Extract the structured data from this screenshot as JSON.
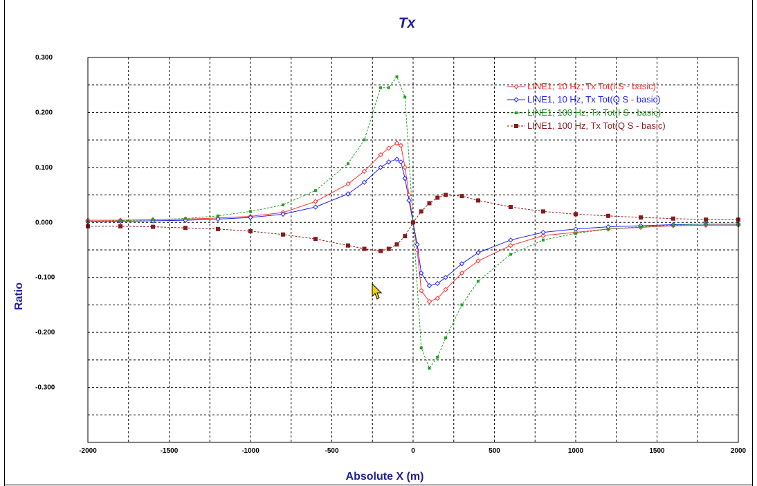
{
  "chart_data": {
    "type": "line",
    "title": "Tx",
    "xlabel": "Absolute X (m)",
    "ylabel": "Ratio",
    "xlim": [
      -2000,
      2000
    ],
    "ylim": [
      -0.4,
      0.3
    ],
    "x_ticks": [
      -2000,
      -1500,
      -1000,
      -500,
      0,
      500,
      1000,
      1500,
      2000
    ],
    "x_tick_labels": [
      "-2000",
      "-1500",
      "-1000",
      "-500",
      "0",
      "500",
      "1000",
      "1500",
      "2000"
    ],
    "y_ticks": [
      0.3,
      0.2,
      0.1,
      0.0,
      -0.1,
      -0.2,
      -0.3
    ],
    "y_tick_labels": [
      "0.300",
      "0.200",
      "0.100",
      "0.000",
      "-0.100",
      "-0.200",
      "-0.300"
    ],
    "grid": true,
    "legend_position": "top-right",
    "series": [
      {
        "name": "LINE1, 10 Hz, Tx Tot(I S - basic)",
        "color": "#ff3030",
        "marker": "diamond-open",
        "dashed": false,
        "points": [
          [
            -2000,
            0.004
          ],
          [
            -1800,
            0.004
          ],
          [
            -1600,
            0.005
          ],
          [
            -1400,
            0.006
          ],
          [
            -1200,
            0.008
          ],
          [
            -1000,
            0.011
          ],
          [
            -800,
            0.018
          ],
          [
            -600,
            0.038
          ],
          [
            -400,
            0.07
          ],
          [
            -300,
            0.093
          ],
          [
            -200,
            0.123
          ],
          [
            -150,
            0.135
          ],
          [
            -100,
            0.144
          ],
          [
            -75,
            0.14
          ],
          [
            -50,
            0.1
          ],
          [
            -25,
            0.05
          ],
          [
            0,
            0.0
          ],
          [
            25,
            -0.05
          ],
          [
            50,
            -0.124
          ],
          [
            100,
            -0.144
          ],
          [
            150,
            -0.138
          ],
          [
            200,
            -0.122
          ],
          [
            300,
            -0.092
          ],
          [
            400,
            -0.07
          ],
          [
            600,
            -0.042
          ],
          [
            800,
            -0.024
          ],
          [
            1000,
            -0.018
          ],
          [
            1200,
            -0.012
          ],
          [
            1400,
            -0.009
          ],
          [
            1600,
            -0.006
          ],
          [
            1800,
            -0.005
          ],
          [
            2000,
            -0.005
          ]
        ]
      },
      {
        "name": "LINE1, 10 Hz, Tx Tot(Q S - basic)",
        "color": "#2020ff",
        "marker": "diamond-open",
        "dashed": false,
        "points": [
          [
            -2000,
            0.001
          ],
          [
            -1800,
            0.002
          ],
          [
            -1600,
            0.003
          ],
          [
            -1400,
            0.004
          ],
          [
            -1200,
            0.006
          ],
          [
            -1000,
            0.009
          ],
          [
            -800,
            0.015
          ],
          [
            -600,
            0.028
          ],
          [
            -400,
            0.052
          ],
          [
            -300,
            0.073
          ],
          [
            -200,
            0.1
          ],
          [
            -150,
            0.11
          ],
          [
            -100,
            0.115
          ],
          [
            -75,
            0.11
          ],
          [
            -50,
            0.08
          ],
          [
            -25,
            0.04
          ],
          [
            0,
            0.0
          ],
          [
            25,
            -0.04
          ],
          [
            50,
            -0.092
          ],
          [
            100,
            -0.115
          ],
          [
            150,
            -0.111
          ],
          [
            200,
            -0.1
          ],
          [
            300,
            -0.075
          ],
          [
            400,
            -0.055
          ],
          [
            600,
            -0.032
          ],
          [
            800,
            -0.018
          ],
          [
            1000,
            -0.012
          ],
          [
            1200,
            -0.008
          ],
          [
            1400,
            -0.006
          ],
          [
            1600,
            -0.004
          ],
          [
            1800,
            -0.003
          ],
          [
            2000,
            -0.003
          ]
        ]
      },
      {
        "name": "LINE1, 100 Hz, Tx Tot(I S - basic)",
        "color": "#20a020",
        "marker": "square-small",
        "dashed": true,
        "points": [
          [
            -2000,
            0.002
          ],
          [
            -1800,
            0.003
          ],
          [
            -1600,
            0.005
          ],
          [
            -1400,
            0.007
          ],
          [
            -1200,
            0.012
          ],
          [
            -1000,
            0.02
          ],
          [
            -800,
            0.032
          ],
          [
            -600,
            0.058
          ],
          [
            -400,
            0.107
          ],
          [
            -300,
            0.15
          ],
          [
            -200,
            0.245
          ],
          [
            -150,
            0.245
          ],
          [
            -100,
            0.265
          ],
          [
            -50,
            0.228
          ],
          [
            0,
            0.0
          ],
          [
            50,
            -0.228
          ],
          [
            100,
            -0.265
          ],
          [
            150,
            -0.245
          ],
          [
            200,
            -0.21
          ],
          [
            300,
            -0.15
          ],
          [
            400,
            -0.107
          ],
          [
            600,
            -0.058
          ],
          [
            800,
            -0.032
          ],
          [
            1000,
            -0.02
          ],
          [
            1200,
            -0.012
          ],
          [
            1400,
            -0.008
          ],
          [
            1600,
            -0.005
          ],
          [
            1800,
            -0.003
          ],
          [
            2000,
            -0.003
          ]
        ]
      },
      {
        "name": "LINE1, 100 Hz, Tx Tot(Q S - basic)",
        "color": "#8b1a1a",
        "marker": "square",
        "dashed": true,
        "points": [
          [
            -2000,
            -0.007
          ],
          [
            -1800,
            -0.007
          ],
          [
            -1600,
            -0.008
          ],
          [
            -1400,
            -0.01
          ],
          [
            -1200,
            -0.012
          ],
          [
            -1000,
            -0.016
          ],
          [
            -800,
            -0.022
          ],
          [
            -600,
            -0.03
          ],
          [
            -400,
            -0.042
          ],
          [
            -300,
            -0.048
          ],
          [
            -200,
            -0.052
          ],
          [
            -150,
            -0.048
          ],
          [
            -100,
            -0.04
          ],
          [
            -50,
            -0.025
          ],
          [
            0,
            0.0
          ],
          [
            50,
            0.02
          ],
          [
            100,
            0.035
          ],
          [
            150,
            0.045
          ],
          [
            200,
            0.05
          ],
          [
            300,
            0.048
          ],
          [
            400,
            0.04
          ],
          [
            600,
            0.028
          ],
          [
            800,
            0.02
          ],
          [
            1000,
            0.015
          ],
          [
            1200,
            0.012
          ],
          [
            1400,
            0.009
          ],
          [
            1600,
            0.007
          ],
          [
            1800,
            0.005
          ],
          [
            2000,
            0.005
          ]
        ]
      }
    ]
  }
}
